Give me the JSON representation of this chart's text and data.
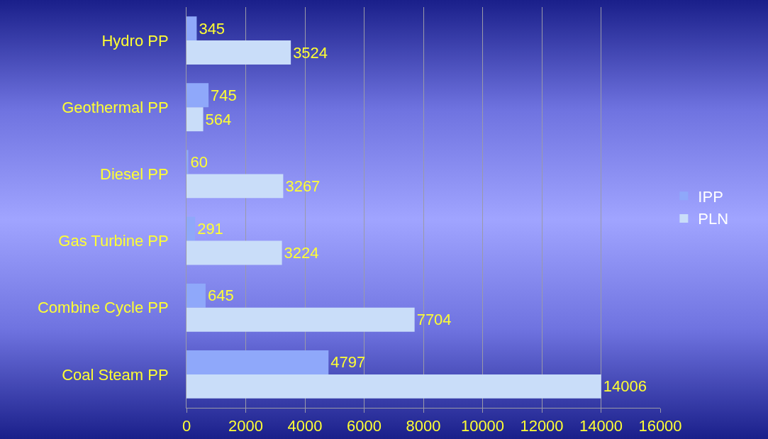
{
  "chart_data": {
    "type": "bar",
    "orientation": "horizontal",
    "categories": [
      "Hydro PP",
      "Geothermal PP",
      "Diesel PP",
      "Gas Turbine PP",
      "Combine Cycle PP",
      "Coal Steam PP"
    ],
    "series": [
      {
        "name": "IPP",
        "color": "#8fa8fa",
        "values": [
          345,
          745,
          60,
          291,
          645,
          4797
        ]
      },
      {
        "name": "PLN",
        "color": "#c9ddf9",
        "values": [
          3524,
          564,
          3267,
          3224,
          7704,
          14006
        ]
      }
    ],
    "xlim": [
      0,
      16000
    ],
    "xticks": [
      0,
      2000,
      4000,
      6000,
      8000,
      10000,
      12000,
      14000,
      16000
    ],
    "grid": "x",
    "legend": "right",
    "data_labels": true
  }
}
